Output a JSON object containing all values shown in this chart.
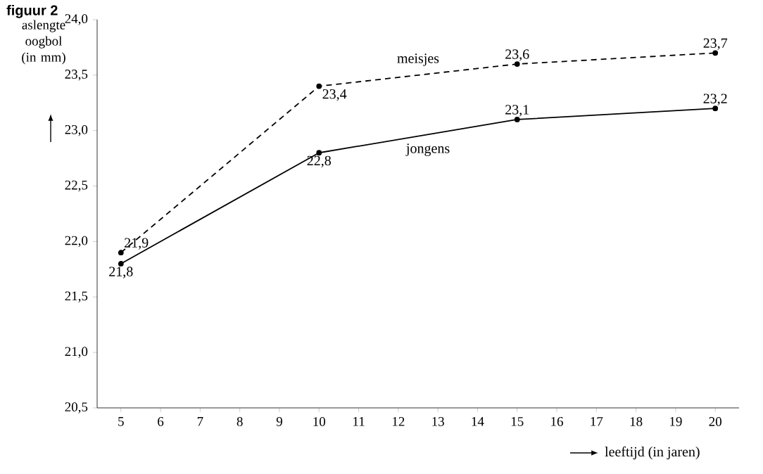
{
  "chart_data": {
    "type": "line",
    "title": "figuur 2",
    "ylabel": "aslengte oogbol (in mm)",
    "xlabel": "leeftijd (in jaren)",
    "x": [
      5,
      10,
      15,
      20
    ],
    "series": [
      {
        "name": "meisjes",
        "color": "#000000",
        "line_style": "dashed",
        "values": [
          21.9,
          23.4,
          23.6,
          23.7
        ],
        "value_labels": [
          "21,9",
          "23,4",
          "23,6",
          "23,7"
        ]
      },
      {
        "name": "jongens",
        "color": "#000000",
        "line_style": "solid",
        "values": [
          21.8,
          22.8,
          23.1,
          23.2
        ],
        "value_labels": [
          "21,8",
          "22,8",
          "23,1",
          "23,2"
        ]
      }
    ],
    "xlim": [
      4.4,
      20.6
    ],
    "xticks": [
      5,
      6,
      7,
      8,
      9,
      10,
      11,
      12,
      13,
      14,
      15,
      16,
      17,
      18,
      19,
      20
    ],
    "ylim": [
      20.5,
      24.0
    ],
    "yticks": [
      {
        "value": 20.5,
        "label": "20,5"
      },
      {
        "value": 21.0,
        "label": "21,0"
      },
      {
        "value": 21.5,
        "label": "21,5"
      },
      {
        "value": 22.0,
        "label": "22,0"
      },
      {
        "value": 22.5,
        "label": "22,5"
      },
      {
        "value": 23.0,
        "label": "23,0"
      },
      {
        "value": 23.5,
        "label": "23,5"
      },
      {
        "value": 24.0,
        "label": "24,0"
      }
    ],
    "marker": "circle",
    "grid": false
  }
}
